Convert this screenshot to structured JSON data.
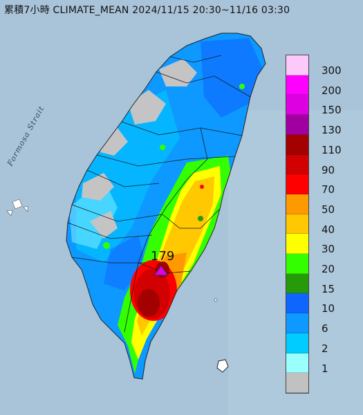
{
  "title": "累積7小時 CLIMATE_MEAN 2024/11/15 20:30~11/16 03:30",
  "sea_label": "Formosa Strait",
  "peak_value": "179",
  "legend": {
    "levels": [
      "300",
      "200",
      "150",
      "130",
      "110",
      "90",
      "70",
      "50",
      "40",
      "30",
      "20",
      "15",
      "10",
      "6",
      "2",
      "1"
    ],
    "colors": [
      "#fdc9fb",
      "#fe00fd",
      "#dd00e0",
      "#a100a0",
      "#a30000",
      "#d20000",
      "#fe0000",
      "#fe9900",
      "#ffc800",
      "#ffff00",
      "#33ff00",
      "#279a09",
      "#0f66ff",
      "#0d99ff",
      "#00ccff",
      "#99ffff",
      "#c1c1c1"
    ]
  },
  "colors": {
    "sea": "#a9c3d9",
    "no_rain": "#c4c4c4",
    "peak_marker": "#e100e6"
  }
}
